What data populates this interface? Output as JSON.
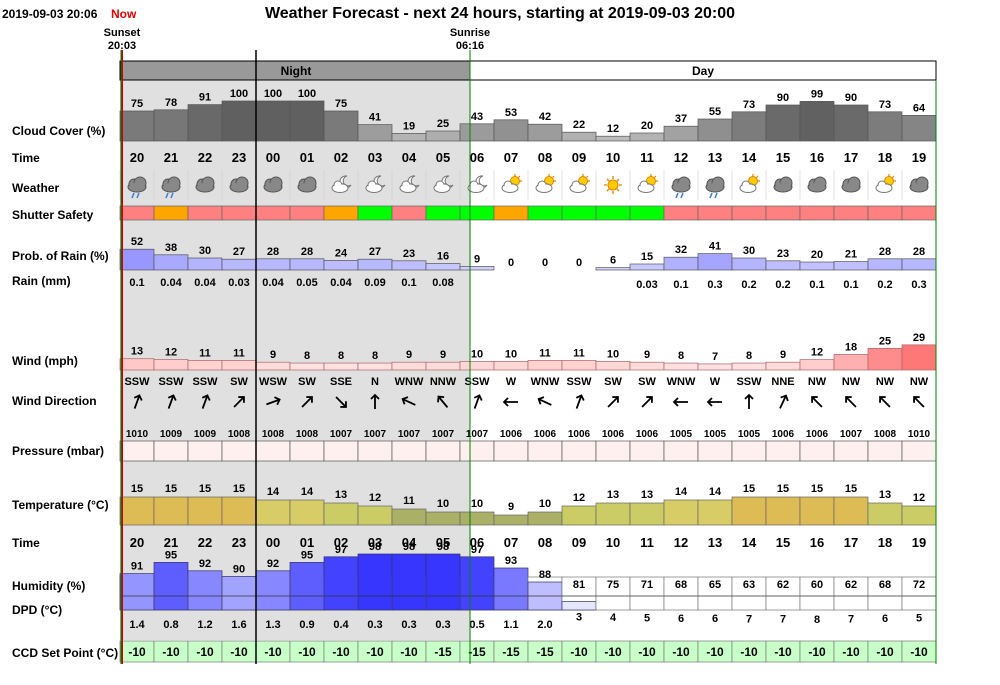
{
  "header": {
    "datetime": "2019-09-03 20:06",
    "now_label": "Now",
    "title": "Weather Forecast - next 24 hours, starting at 2019-09-03 20:00",
    "sunset_label": "Sunset",
    "sunset_time": "20:03",
    "sunrise_label": "Sunrise",
    "sunrise_time": "06:16",
    "night_label": "Night",
    "day_label": "Day"
  },
  "row_labels": {
    "cloud": "Cloud Cover (%)",
    "time": "Time",
    "weather": "Weather",
    "shutter": "Shutter Safety",
    "rain_prob": "Prob. of Rain (%)",
    "rain_mm": "Rain (mm)",
    "wind": "Wind (mph)",
    "wind_dir": "Wind Direction",
    "pressure": "Pressure (mbar)",
    "temperature": "Temperature (°C)",
    "time2": "Time",
    "humidity": "Humidity (%)",
    "dpd": "DPD (°C)",
    "ccd": "CCD Set Point (°C)"
  },
  "colors": {
    "safe": "#00ff00",
    "caution": "#ffa500",
    "unsafe": "#ff8080",
    "night_shade": "#e0e0e0",
    "sunset_line": "#cc0000",
    "day_line": "#008000",
    "ccd_bg": "#c8ffc8"
  },
  "chart_data": {
    "type": "table",
    "hours": [
      "20",
      "21",
      "22",
      "23",
      "00",
      "01",
      "02",
      "03",
      "04",
      "05",
      "06",
      "07",
      "08",
      "09",
      "10",
      "11",
      "12",
      "13",
      "14",
      "15",
      "16",
      "17",
      "18",
      "19"
    ],
    "cloud_cover": [
      75,
      78,
      91,
      100,
      100,
      100,
      75,
      41,
      19,
      25,
      43,
      53,
      42,
      22,
      12,
      20,
      37,
      55,
      73,
      90,
      99,
      90,
      73,
      64
    ],
    "weather_icons": [
      "rain-cloud-icon",
      "rain-cloud-icon",
      "cloud-icon",
      "cloud-icon",
      "cloud-icon",
      "cloud-icon",
      "cloud-moon-icon",
      "cloud-moon-icon",
      "cloud-moon-icon",
      "cloud-moon-icon",
      "cloud-moon-icon",
      "cloud-sun-icon",
      "cloud-sun-icon",
      "cloud-sun-icon",
      "sun-icon",
      "cloud-sun-icon",
      "rain-cloud-icon",
      "rain-cloud-icon",
      "cloud-sun-icon",
      "cloud-icon",
      "cloud-icon",
      "cloud-icon",
      "cloud-sun-icon",
      "cloud-icon"
    ],
    "shutter_safety": [
      "unsafe",
      "caution",
      "unsafe",
      "unsafe",
      "unsafe",
      "unsafe",
      "caution",
      "safe",
      "unsafe",
      "safe",
      "safe",
      "caution",
      "safe",
      "safe",
      "safe",
      "safe",
      "unsafe",
      "unsafe",
      "unsafe",
      "unsafe",
      "unsafe",
      "unsafe",
      "unsafe",
      "unsafe"
    ],
    "rain_probability": [
      52,
      38,
      30,
      27,
      28,
      28,
      24,
      27,
      23,
      16,
      9,
      0,
      0,
      0,
      6,
      15,
      32,
      41,
      30,
      23,
      20,
      21,
      28,
      28
    ],
    "rain_mm": [
      "0.1",
      "0.04",
      "0.04",
      "0.03",
      "0.04",
      "0.05",
      "0.04",
      "0.09",
      "0.1",
      "0.08",
      "",
      "",
      "",
      "",
      "",
      "0.03",
      "0.1",
      "0.3",
      "0.2",
      "0.2",
      "0.1",
      "0.1",
      "0.2",
      "0.3"
    ],
    "wind_mph": [
      13,
      12,
      11,
      11,
      9,
      8,
      8,
      8,
      9,
      9,
      10,
      10,
      11,
      11,
      10,
      9,
      8,
      7,
      8,
      9,
      12,
      18,
      25,
      29
    ],
    "wind_direction": [
      "SSW",
      "SSW",
      "SSW",
      "SW",
      "WSW",
      "SW",
      "SSE",
      "N",
      "WNW",
      "NNW",
      "SSW",
      "W",
      "WNW",
      "SSW",
      "SW",
      "SW",
      "WNW",
      "W",
      "SSW",
      "NNE",
      "NW",
      "NW",
      "NW",
      "NW"
    ],
    "wind_arrow_rotation": [
      200,
      200,
      200,
      225,
      250,
      225,
      315,
      180,
      115,
      140,
      200,
      90,
      115,
      200,
      225,
      225,
      90,
      90,
      180,
      205,
      135,
      135,
      135,
      135
    ],
    "pressure_mbar": [
      1010,
      1009,
      1009,
      1008,
      1008,
      1008,
      1007,
      1007,
      1007,
      1007,
      1007,
      1006,
      1006,
      1006,
      1006,
      1006,
      1005,
      1005,
      1005,
      1006,
      1006,
      1007,
      1008,
      1010
    ],
    "temperature_c": [
      15,
      15,
      15,
      15,
      14,
      14,
      13,
      12,
      11,
      10,
      10,
      9,
      10,
      12,
      13,
      13,
      14,
      14,
      15,
      15,
      15,
      15,
      13,
      12
    ],
    "humidity_pct": [
      91,
      95,
      92,
      90,
      92,
      95,
      97,
      98,
      98,
      98,
      97,
      93,
      88,
      81,
      75,
      71,
      68,
      65,
      63,
      62,
      60,
      62,
      68,
      72
    ],
    "dpd_c": [
      "1.4",
      "0.8",
      "1.2",
      "1.6",
      "1.3",
      "0.9",
      "0.4",
      "0.3",
      "0.3",
      "0.3",
      "0.5",
      "1.1",
      "2.0",
      "3",
      "4",
      "5",
      "6",
      "6",
      "7",
      "7",
      "8",
      "7",
      "6",
      "5"
    ],
    "ccd_set_point_c": [
      -10,
      -10,
      -10,
      -10,
      -10,
      -10,
      -10,
      -10,
      -10,
      -15,
      -15,
      -15,
      -15,
      -10,
      -10,
      -10,
      -10,
      -10,
      -10,
      -10,
      -10,
      -10,
      -10,
      -10
    ]
  }
}
